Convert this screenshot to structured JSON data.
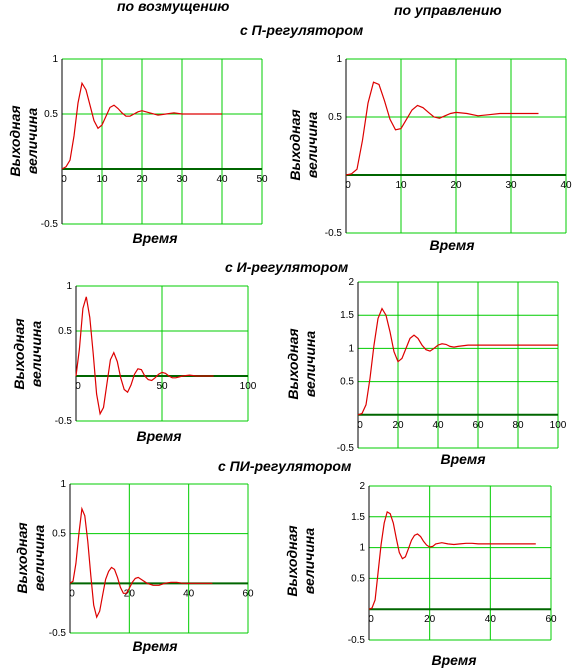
{
  "headers": {
    "col_left": "по возмущению",
    "col_right": "по управлению",
    "row_p": "с П-регулятором",
    "row_i": "с И-регулятором",
    "row_pi": "с ПИ-регулятором"
  },
  "colors": {
    "grid": "#00cc00",
    "curve": "#dd0000",
    "axis": "#006600",
    "frame": "#000000"
  },
  "chart_data": [
    {
      "id": "p-disturbance",
      "type": "line",
      "xlabel": "Время",
      "ylabel": "Выходная величина",
      "xlim": [
        0,
        50
      ],
      "ylim": [
        -0.5,
        1
      ],
      "xticks": [
        0,
        10,
        20,
        30,
        40,
        50
      ],
      "yticks": [
        -0.5,
        0.5,
        1
      ],
      "yticklabels": [
        "-0.5",
        "0.5",
        "1"
      ],
      "grid": true,
      "series": [
        {
          "x": [
            0,
            1,
            2,
            3,
            4,
            5,
            6,
            7,
            8,
            9,
            10,
            11,
            12,
            13,
            14,
            15,
            16,
            17,
            18,
            19,
            20,
            22,
            24,
            26,
            28,
            30,
            32,
            34,
            36,
            38,
            40
          ],
          "y": [
            0,
            0.02,
            0.08,
            0.3,
            0.6,
            0.78,
            0.72,
            0.58,
            0.44,
            0.37,
            0.4,
            0.48,
            0.56,
            0.58,
            0.55,
            0.51,
            0.48,
            0.48,
            0.5,
            0.52,
            0.53,
            0.51,
            0.49,
            0.5,
            0.51,
            0.5,
            0.5,
            0.5,
            0.5,
            0.5,
            0.5
          ]
        }
      ]
    },
    {
      "id": "p-control",
      "type": "line",
      "xlabel": "Время",
      "ylabel": "Выходная величина",
      "xlim": [
        0,
        40
      ],
      "ylim": [
        -0.5,
        1
      ],
      "xticks": [
        0,
        10,
        20,
        30,
        40
      ],
      "yticks": [
        -0.5,
        0.5,
        1
      ],
      "yticklabels": [
        "-0.5",
        "0.5",
        "1"
      ],
      "grid": true,
      "series": [
        {
          "x": [
            0,
            1,
            2,
            3,
            4,
            5,
            6,
            7,
            8,
            9,
            10,
            11,
            12,
            13,
            14,
            15,
            16,
            17,
            18,
            19,
            20,
            22,
            24,
            26,
            28,
            30,
            32,
            35
          ],
          "y": [
            0,
            0.01,
            0.05,
            0.3,
            0.62,
            0.8,
            0.78,
            0.64,
            0.48,
            0.39,
            0.4,
            0.48,
            0.56,
            0.6,
            0.58,
            0.54,
            0.5,
            0.49,
            0.51,
            0.53,
            0.54,
            0.53,
            0.51,
            0.52,
            0.53,
            0.53,
            0.53,
            0.53
          ]
        }
      ]
    },
    {
      "id": "i-disturbance",
      "type": "line",
      "xlabel": "Время",
      "ylabel": "Выходная величина",
      "xlim": [
        0,
        100
      ],
      "ylim": [
        -0.5,
        1
      ],
      "xticks": [
        0,
        50,
        100
      ],
      "yticks": [
        -0.5,
        0.5,
        1
      ],
      "yticklabels": [
        "-0.5",
        "0.5",
        "1"
      ],
      "grid": true,
      "series": [
        {
          "x": [
            0,
            2,
            4,
            6,
            8,
            10,
            12,
            14,
            16,
            18,
            20,
            22,
            24,
            26,
            28,
            30,
            32,
            34,
            36,
            38,
            40,
            42,
            44,
            46,
            48,
            50,
            52,
            54,
            56,
            58,
            60,
            62,
            66,
            70,
            74,
            80
          ],
          "y": [
            0,
            0.3,
            0.75,
            0.88,
            0.65,
            0.25,
            -0.2,
            -0.42,
            -0.35,
            -0.08,
            0.18,
            0.26,
            0.16,
            -0.02,
            -0.15,
            -0.18,
            -0.1,
            0.02,
            0.08,
            0.07,
            0.0,
            -0.04,
            -0.05,
            -0.02,
            0.02,
            0.04,
            0.03,
            0.0,
            -0.02,
            -0.02,
            -0.01,
            0.0,
            0.01,
            0.0,
            0.0,
            0.0
          ]
        }
      ]
    },
    {
      "id": "i-control",
      "type": "line",
      "xlabel": "Время",
      "ylabel": "Выходная величина",
      "xlim": [
        0,
        100
      ],
      "ylim": [
        -0.5,
        2
      ],
      "xticks": [
        0,
        20,
        40,
        60,
        80,
        100
      ],
      "yticks": [
        -0.5,
        0.5,
        1,
        1.5,
        2
      ],
      "yticklabels": [
        "-0.5",
        "0.5",
        "1",
        "1.5",
        "2"
      ],
      "grid": true,
      "series": [
        {
          "x": [
            0,
            2,
            4,
            6,
            8,
            10,
            12,
            14,
            16,
            18,
            20,
            22,
            24,
            26,
            28,
            30,
            32,
            34,
            36,
            38,
            40,
            42,
            44,
            46,
            48,
            50,
            55,
            60,
            65,
            70,
            75,
            80,
            90,
            100
          ],
          "y": [
            0,
            0.02,
            0.15,
            0.55,
            1.05,
            1.45,
            1.6,
            1.5,
            1.25,
            0.95,
            0.8,
            0.85,
            1.0,
            1.15,
            1.2,
            1.15,
            1.05,
            0.98,
            0.96,
            1.0,
            1.05,
            1.07,
            1.06,
            1.03,
            1.02,
            1.03,
            1.05,
            1.05,
            1.05,
            1.05,
            1.05,
            1.05,
            1.05,
            1.05
          ]
        }
      ]
    },
    {
      "id": "pi-disturbance",
      "type": "line",
      "xlabel": "Время",
      "ylabel": "Выходная величина",
      "xlim": [
        0,
        60
      ],
      "ylim": [
        -0.5,
        1
      ],
      "xticks": [
        0,
        20,
        40,
        60
      ],
      "yticks": [
        -0.5,
        0.5,
        1
      ],
      "yticklabels": [
        "-0.5",
        "0.5",
        "1"
      ],
      "grid": true,
      "series": [
        {
          "x": [
            0,
            1,
            2,
            3,
            4,
            5,
            6,
            7,
            8,
            9,
            10,
            11,
            12,
            13,
            14,
            15,
            16,
            17,
            18,
            19,
            20,
            21,
            22,
            23,
            24,
            26,
            28,
            30,
            32,
            34,
            36,
            38,
            40,
            44,
            48
          ],
          "y": [
            0,
            0.02,
            0.2,
            0.5,
            0.75,
            0.68,
            0.42,
            0.08,
            -0.22,
            -0.34,
            -0.28,
            -0.12,
            0.04,
            0.12,
            0.16,
            0.14,
            0.06,
            -0.04,
            -0.1,
            -0.1,
            -0.05,
            0.01,
            0.05,
            0.06,
            0.04,
            0.0,
            -0.02,
            -0.02,
            0.0,
            0.01,
            0.01,
            0.0,
            0.0,
            0.0,
            0.0
          ]
        }
      ]
    },
    {
      "id": "pi-control",
      "type": "line",
      "xlabel": "Время",
      "ylabel": "Выходная величина",
      "xlim": [
        0,
        60
      ],
      "ylim": [
        -0.5,
        2
      ],
      "xticks": [
        0,
        20,
        40,
        60
      ],
      "yticks": [
        -0.5,
        0.5,
        1,
        1.5,
        2
      ],
      "yticklabels": [
        "-0.5",
        "0.5",
        "1",
        "1.5",
        "2"
      ],
      "grid": true,
      "series": [
        {
          "x": [
            0,
            1,
            2,
            3,
            4,
            5,
            6,
            7,
            8,
            9,
            10,
            11,
            12,
            13,
            14,
            15,
            16,
            17,
            18,
            19,
            20,
            21,
            22,
            24,
            26,
            28,
            30,
            32,
            34,
            36,
            38,
            40,
            44,
            48,
            52,
            55
          ],
          "y": [
            0,
            0.02,
            0.15,
            0.6,
            1.05,
            1.4,
            1.58,
            1.55,
            1.4,
            1.15,
            0.92,
            0.82,
            0.85,
            0.98,
            1.12,
            1.2,
            1.22,
            1.18,
            1.1,
            1.04,
            1.01,
            1.02,
            1.06,
            1.08,
            1.06,
            1.05,
            1.06,
            1.07,
            1.07,
            1.06,
            1.06,
            1.06,
            1.06,
            1.06,
            1.06,
            1.06
          ]
        }
      ]
    }
  ]
}
